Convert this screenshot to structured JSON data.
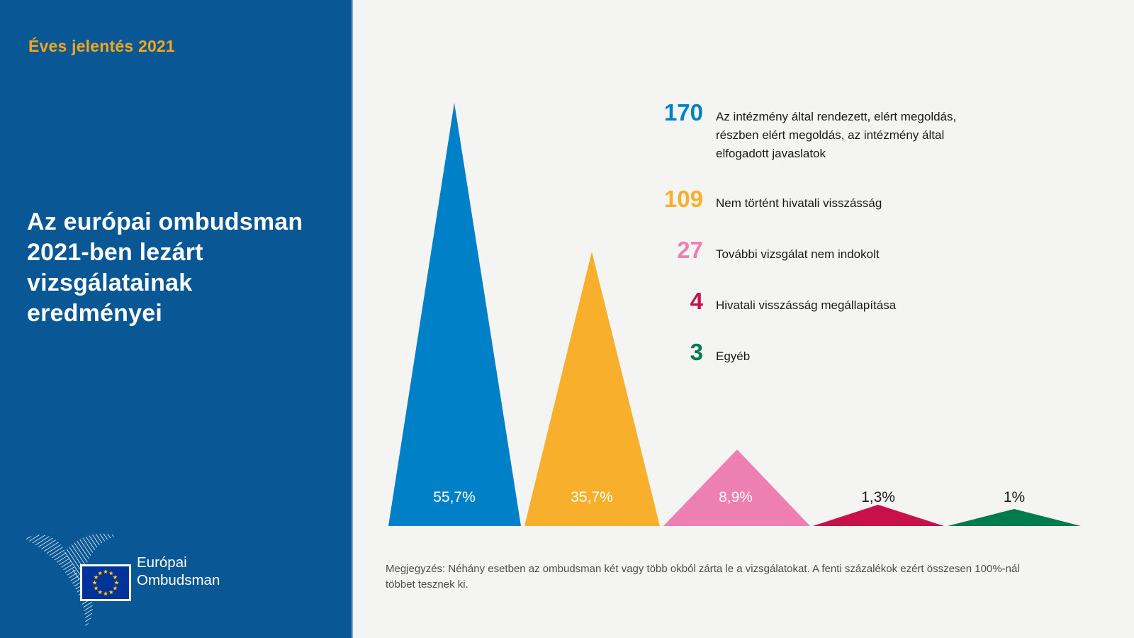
{
  "sidebar": {
    "report_label": "Éves jelentés 2021",
    "title": "Az európai ombudsman\n2021-ben lezárt\nvizsgálatainak\neredményei",
    "logo_text": "Európai\nOmbudsman",
    "colors": {
      "background": "#0A5796",
      "accent": "#F3A71B",
      "edge_line": "#7EA8D2"
    },
    "flag": {
      "background": "#003399",
      "stars": "#FFCC00",
      "border": "#FFFFFF"
    }
  },
  "chart_data": {
    "type": "bar",
    "variant": "triangle-peaks",
    "title": "",
    "xlabel": "",
    "ylabel": "",
    "legend_position": "right",
    "grid": false,
    "categories": [
      "Az intézmény által rendezett, elért megoldás, részben elért megoldás, az intézmény által elfogadott javaslatok",
      "Nem történt hivatali visszásság",
      "További vizsgálat nem indokolt",
      "Hivatali visszásság megállapítása",
      "Egyéb"
    ],
    "items": [
      {
        "count": "170",
        "pct": 55.7,
        "pct_label": "55,7%",
        "label": "Az intézmény által rendezett, elért megoldás,\nrészben elért megoldás, az intézmény által\nelfogadott javaslatok",
        "color": "#0080C7",
        "value_label_color": "#FFFFFF"
      },
      {
        "count": "109",
        "pct": 35.7,
        "pct_label": "35,7%",
        "label": "Nem történt hivatali visszásság",
        "color": "#F8B02C",
        "value_label_color": "#FFFFFF"
      },
      {
        "count": "27",
        "pct": 8.9,
        "pct_label": "8,9%",
        "label": "További vizsgálat nem indokolt",
        "color": "#EE7FB1",
        "value_label_color": "#FFFFFF"
      },
      {
        "count": "4",
        "pct": 1.3,
        "pct_label": "1,3%",
        "label": "Hivatali visszásság megállapítása",
        "color": "#C8104B",
        "value_label_color": "#1A1A1A"
      },
      {
        "count": "3",
        "pct": 1.0,
        "pct_label": "1%",
        "label": "Egyéb",
        "color": "#007B4C",
        "value_label_color": "#1A1A1A"
      }
    ],
    "note": "Megjegyzés: Néhány esetben az ombudsman két vagy több okból zárta le a vizsgálatokat. A fenti százalékok ezért összesen 100%-nál\ntöbbet tesznek ki."
  }
}
